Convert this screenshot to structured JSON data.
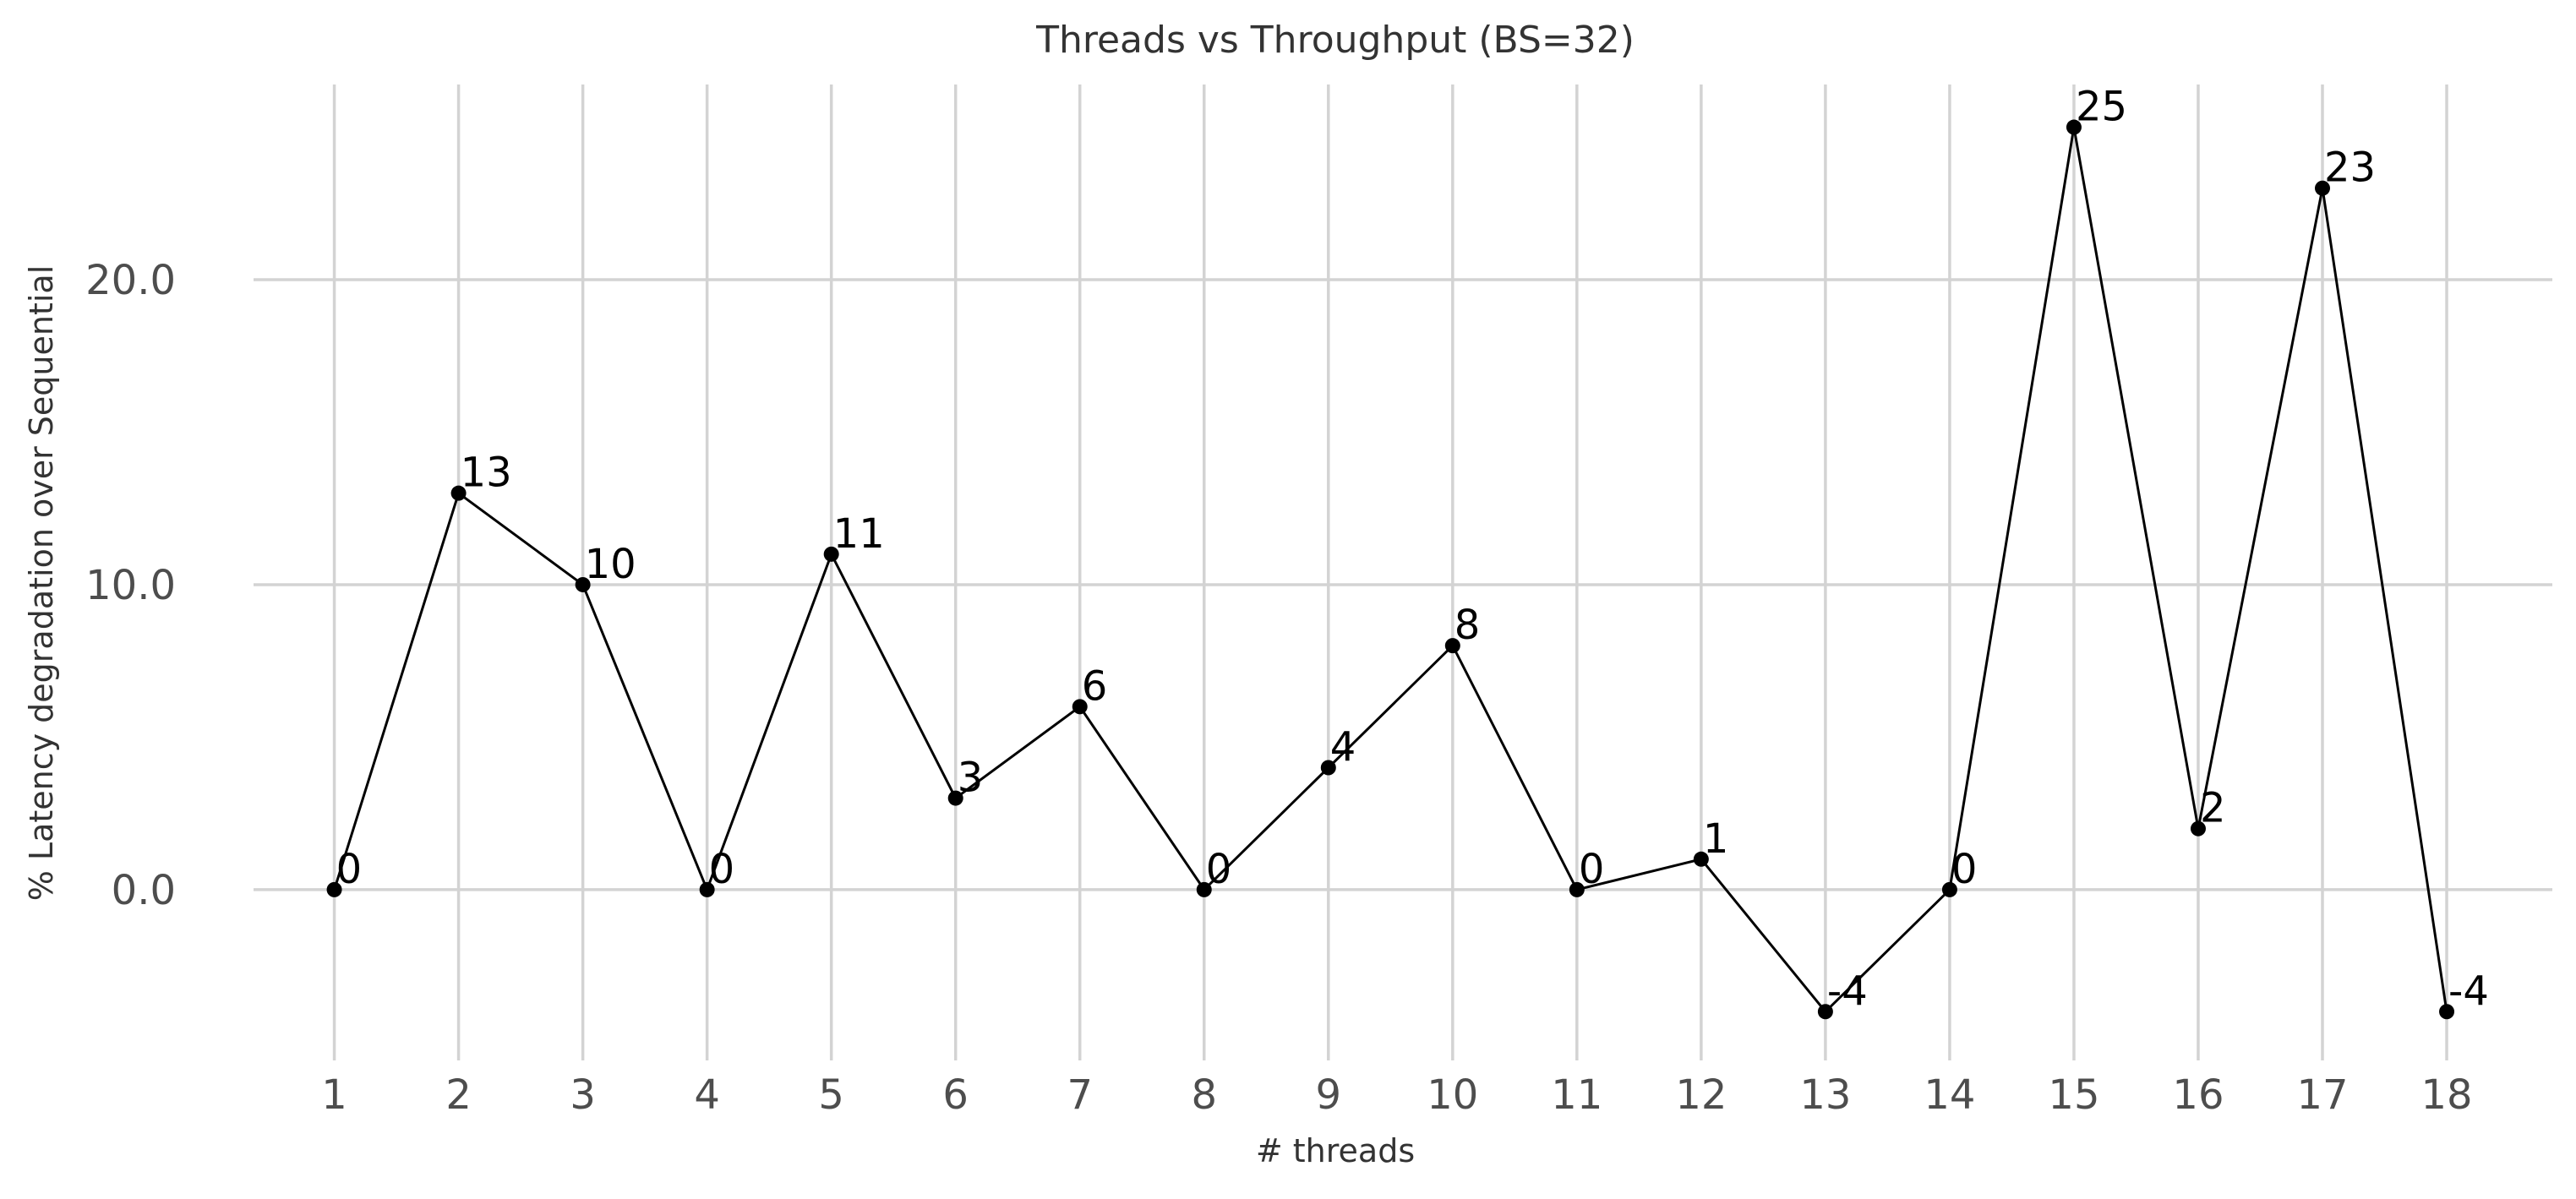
{
  "chart_data": {
    "type": "line",
    "title": "Threads vs Throughput (BS=32)",
    "xlabel": "# threads",
    "ylabel": "% Latency degradation over Sequential",
    "x": [
      1,
      2,
      3,
      4,
      5,
      6,
      7,
      8,
      9,
      10,
      11,
      12,
      13,
      14,
      15,
      16,
      17,
      18
    ],
    "x_tick_labels": [
      "1",
      "2",
      "3",
      "4",
      "5",
      "6",
      "7",
      "8",
      "9",
      "10",
      "11",
      "12",
      "13",
      "14",
      "15",
      "16",
      "17",
      "18"
    ],
    "series": [
      {
        "values": [
          0,
          13,
          10,
          0,
          11,
          3,
          6,
          0,
          4,
          8,
          0,
          1,
          -4,
          0,
          25,
          2,
          23,
          -4
        ],
        "data_labels": [
          "0",
          "13",
          "10",
          "0",
          "11",
          "3",
          "6",
          "0",
          "4",
          "8",
          "0",
          "1",
          "-4",
          "0",
          "25",
          "2",
          "23",
          "-4"
        ],
        "color": "#000000",
        "marker": "circle"
      }
    ],
    "y_ticks": [
      0,
      10,
      20
    ],
    "y_tick_labels": [
      "0.0",
      "10.0",
      "20.0"
    ],
    "xlim": [
      0.35,
      18.85
    ],
    "ylim": [
      -5.6,
      26.4
    ],
    "grid": true,
    "legend": "none",
    "colors": {
      "line": "#000000",
      "grid": "#d3d3d3",
      "text": "#333333",
      "tick_text": "#4d4d4d"
    }
  }
}
